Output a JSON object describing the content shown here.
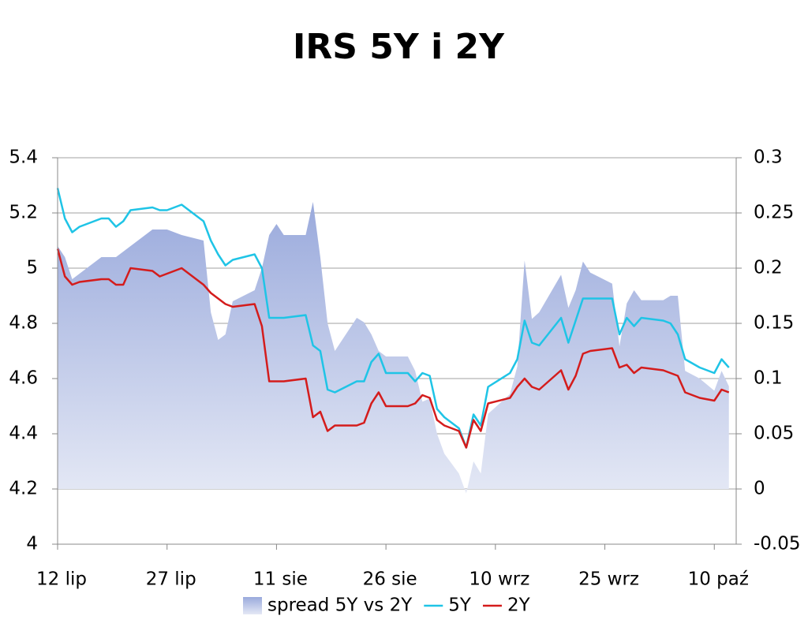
{
  "chart_data": {
    "type": "line",
    "title": "IRS 5Y i 2Y",
    "x": [
      0,
      1,
      2,
      3,
      6,
      7,
      8,
      9,
      10,
      13,
      14,
      15,
      17,
      20,
      21,
      22,
      23,
      24,
      27,
      28,
      29,
      30,
      31,
      34,
      35,
      36,
      37,
      38,
      41,
      42,
      43,
      44,
      45,
      48,
      49,
      50,
      51,
      52,
      53,
      55,
      56,
      57,
      58,
      59,
      62,
      63,
      64,
      65,
      66,
      69,
      70,
      71,
      72,
      73,
      76,
      77,
      78,
      79,
      80,
      83,
      84,
      85,
      86,
      88,
      90,
      91,
      92
    ],
    "xlim": [
      0,
      93
    ],
    "xticks": [
      {
        "value": 0,
        "label": "12 lip"
      },
      {
        "value": 15,
        "label": "27 lip"
      },
      {
        "value": 30,
        "label": "11 sie"
      },
      {
        "value": 45,
        "label": "26 sie"
      },
      {
        "value": 60,
        "label": "10 wrz"
      },
      {
        "value": 75,
        "label": "25 wrz"
      },
      {
        "value": 90,
        "label": "10 paź"
      }
    ],
    "ylim": [
      4,
      5.4
    ],
    "yticks": [
      4,
      4.2,
      4.4,
      4.6,
      4.8,
      5,
      5.2,
      5.4
    ],
    "y2lim": [
      -0.05,
      0.3
    ],
    "y2ticks": [
      -0.05,
      0,
      0.05,
      0.1,
      0.15,
      0.2,
      0.25,
      0.3
    ],
    "grid": true,
    "legend": "bottom",
    "series": [
      {
        "name": "spread 5Y vs 2Y",
        "axis": "y2",
        "style": "area",
        "color": "#9aaadc",
        "values": [
          0.22,
          0.21,
          0.19,
          0.195,
          0.21,
          0.21,
          0.21,
          0.215,
          0.22,
          0.235,
          0.235,
          0.235,
          0.23,
          0.225,
          0.16,
          0.135,
          0.14,
          0.17,
          0.18,
          0.2,
          0.23,
          0.24,
          0.23,
          0.23,
          0.26,
          0.21,
          0.15,
          0.125,
          0.155,
          0.151,
          0.14,
          0.125,
          0.12,
          0.12,
          0.107,
          0.079,
          0.082,
          0.05,
          0.032,
          0.014,
          -0.004,
          0.025,
          0.014,
          0.068,
          0.086,
          0.111,
          0.207,
          0.154,
          0.16,
          0.194,
          0.164,
          0.18,
          0.206,
          0.196,
          0.186,
          0.129,
          0.168,
          0.18,
          0.171,
          0.171,
          0.175,
          0.175,
          0.107,
          0.1,
          0.089,
          0.107,
          0.093
        ]
      },
      {
        "name": "5Y",
        "style": "line",
        "color": "#1fc4e6",
        "values": [
          5.29,
          5.18,
          5.13,
          5.15,
          5.18,
          5.18,
          5.15,
          5.17,
          5.21,
          5.22,
          5.21,
          5.21,
          5.23,
          5.17,
          5.1,
          5.05,
          5.01,
          5.03,
          5.05,
          5.0,
          4.82,
          4.82,
          4.82,
          4.83,
          4.72,
          4.7,
          4.56,
          4.55,
          4.59,
          4.59,
          4.66,
          4.69,
          4.62,
          4.62,
          4.59,
          4.62,
          4.61,
          4.49,
          4.46,
          4.42,
          4.35,
          4.47,
          4.43,
          4.57,
          4.62,
          4.67,
          4.81,
          4.73,
          4.72,
          4.82,
          4.73,
          4.81,
          4.89,
          4.89,
          4.89,
          4.76,
          4.82,
          4.79,
          4.82,
          4.81,
          4.8,
          4.76,
          4.67,
          4.64,
          4.62,
          4.67,
          4.64
        ]
      },
      {
        "name": "2Y",
        "style": "line",
        "color": "#d41c1c",
        "values": [
          5.07,
          4.97,
          4.94,
          4.95,
          4.96,
          4.96,
          4.94,
          4.94,
          5.0,
          4.99,
          4.97,
          4.98,
          5.0,
          4.94,
          4.91,
          4.89,
          4.87,
          4.86,
          4.87,
          4.79,
          4.59,
          4.59,
          4.59,
          4.6,
          4.46,
          4.48,
          4.41,
          4.43,
          4.43,
          4.44,
          4.51,
          4.55,
          4.5,
          4.5,
          4.51,
          4.54,
          4.53,
          4.45,
          4.43,
          4.41,
          4.35,
          4.45,
          4.41,
          4.51,
          4.53,
          4.57,
          4.6,
          4.57,
          4.56,
          4.63,
          4.56,
          4.61,
          4.69,
          4.7,
          4.71,
          4.64,
          4.65,
          4.62,
          4.64,
          4.63,
          4.62,
          4.61,
          4.55,
          4.53,
          4.52,
          4.56,
          4.55
        ]
      }
    ]
  }
}
